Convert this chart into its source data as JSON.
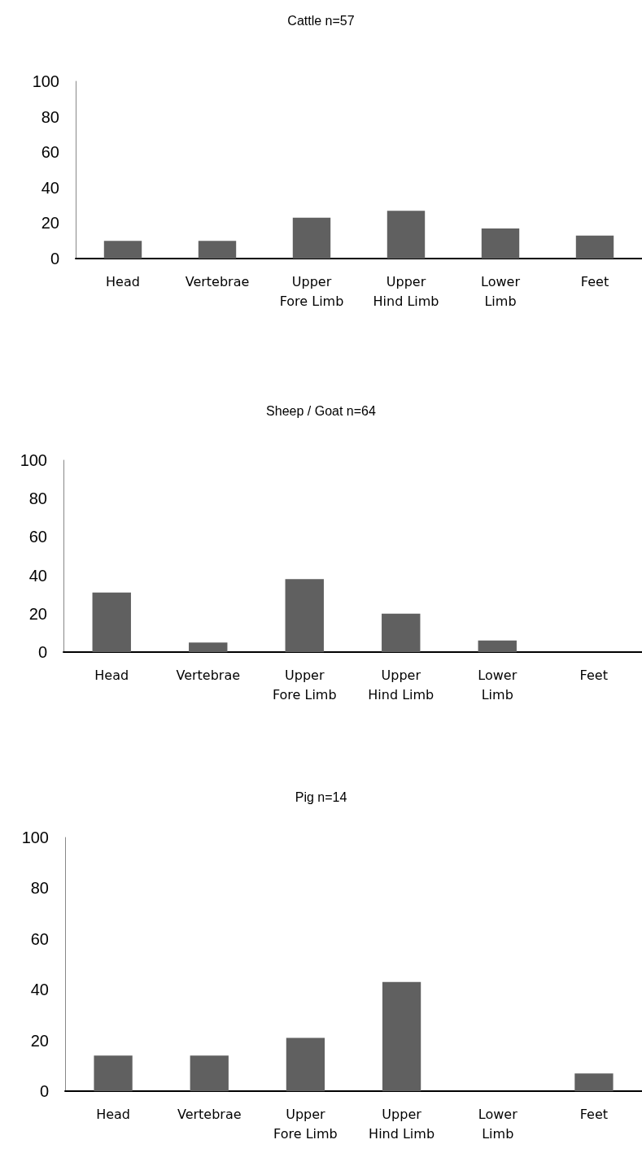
{
  "chart_data": [
    {
      "type": "bar",
      "title": "Cattle n=57",
      "categories": [
        "Head",
        "Vertebrae",
        "Upper\nFore Limb",
        "Upper\nHind Limb",
        "Lower\nLimb",
        "Feet"
      ],
      "values": [
        10,
        10,
        23,
        27,
        17,
        13
      ],
      "color": "#606060",
      "ylim": [
        0,
        100
      ],
      "yticks": [
        0,
        20,
        40,
        60,
        80,
        100
      ]
    },
    {
      "type": "bar",
      "title": "Sheep / Goat n=64",
      "categories": [
        "Head",
        "Vertebrae",
        "Upper\nFore Limb",
        "Upper\nHind Limb",
        "Lower\nLimb",
        "Feet"
      ],
      "values": [
        31,
        5,
        38,
        20,
        6,
        0
      ],
      "color": "#606060",
      "ylim": [
        0,
        100
      ],
      "yticks": [
        0,
        20,
        40,
        60,
        80,
        100
      ]
    },
    {
      "type": "bar",
      "title": "Pig n=14",
      "categories": [
        "Head",
        "Vertebrae",
        "Upper\nFore Limb",
        "Upper\nHind Limb",
        "Lower\nLimb",
        "Feet"
      ],
      "values": [
        14,
        14,
        21,
        43,
        0,
        7
      ],
      "color": "#606060",
      "ylim": [
        0,
        100
      ],
      "yticks": [
        0,
        20,
        40,
        60,
        80,
        100
      ]
    }
  ]
}
